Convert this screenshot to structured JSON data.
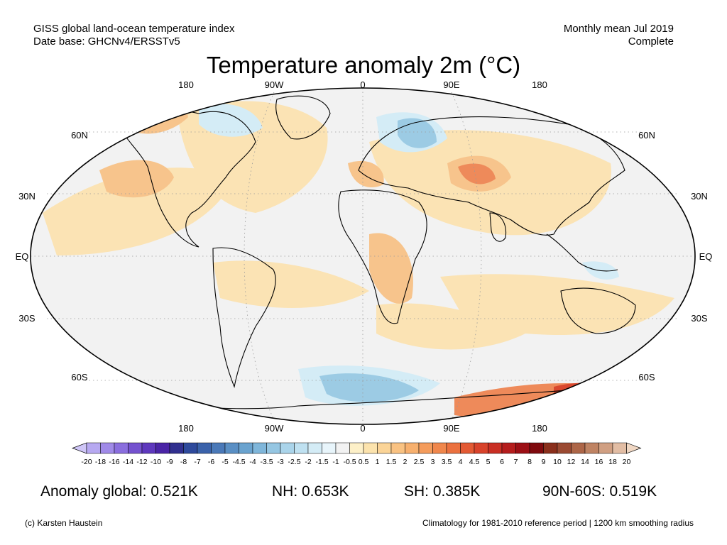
{
  "header": {
    "line1_left": "GISS global land-ocean temperature index",
    "line2_left": "Date base: GHCNv4/ERSSTv5",
    "line1_right": "Monthly mean Jul 2019",
    "line2_right": "Complete"
  },
  "title": "Temperature anomaly 2m (°C)",
  "map": {
    "lon_labels": [
      "180",
      "90W",
      "0",
      "90E",
      "180"
    ],
    "lat_labels": [
      "60N",
      "30N",
      "EQ",
      "30S",
      "60S"
    ],
    "colors": {
      "ocean_neutral": "#f2f2f2",
      "warm_light": "#fbe3b4",
      "warm_mid": "#f7c48c",
      "warm_strong": "#ee8a5a",
      "warm_extreme": "#d9482e",
      "cool_light": "#d4ecf6",
      "cool_mid": "#9ccbe4",
      "outline": "#000000",
      "grid": "#9a9a9a"
    }
  },
  "colorbar": {
    "tick_labels": [
      "-20",
      "-18",
      "-16",
      "-14",
      "-12",
      "-10",
      "-9",
      "-8",
      "-7",
      "-6",
      "-5",
      "-4.5",
      "-4",
      "-3.5",
      "-3",
      "-2.5",
      "-2",
      "-1.5",
      "-1",
      "-0.5",
      "0.5",
      "1",
      "1.5",
      "2",
      "2.5",
      "3",
      "3.5",
      "4",
      "4.5",
      "5",
      "6",
      "7",
      "8",
      "9",
      "10",
      "12",
      "14",
      "16",
      "18",
      "20"
    ],
    "colors": [
      "#cfc6f7",
      "#b7a9f1",
      "#a08ae8",
      "#8a6ede",
      "#7452cf",
      "#5e38bd",
      "#4a24a6",
      "#31308f",
      "#2e4a9c",
      "#3a62aa",
      "#4a79b8",
      "#5a8fc4",
      "#6aa3cf",
      "#7fb6da",
      "#95c6e2",
      "#aad4ea",
      "#bfe1f1",
      "#d4ecf6",
      "#e8f5fb",
      "#f2f2f2",
      "#fdf0c8",
      "#fce3ad",
      "#fbd497",
      "#f9c282",
      "#f7b06e",
      "#f49c5c",
      "#f0874c",
      "#eb713f",
      "#e35a34",
      "#d8432b",
      "#c92f24",
      "#b51d1d",
      "#9c0f15",
      "#7f0a0e",
      "#8a2f1c",
      "#9b4a32",
      "#ad6648",
      "#bf8363",
      "#d09f82",
      "#e2bda4",
      "#f0d7c3"
    ]
  },
  "stats": {
    "global": "Anomaly global: 0.521K",
    "nh": "NH: 0.653K",
    "sh": "SH: 0.385K",
    "polar": "90N-60S: 0.519K"
  },
  "footer": {
    "left": "(c) Karsten Haustein",
    "right": "Climatology for 1981-2010 reference period | 1200 km smoothing radius"
  }
}
